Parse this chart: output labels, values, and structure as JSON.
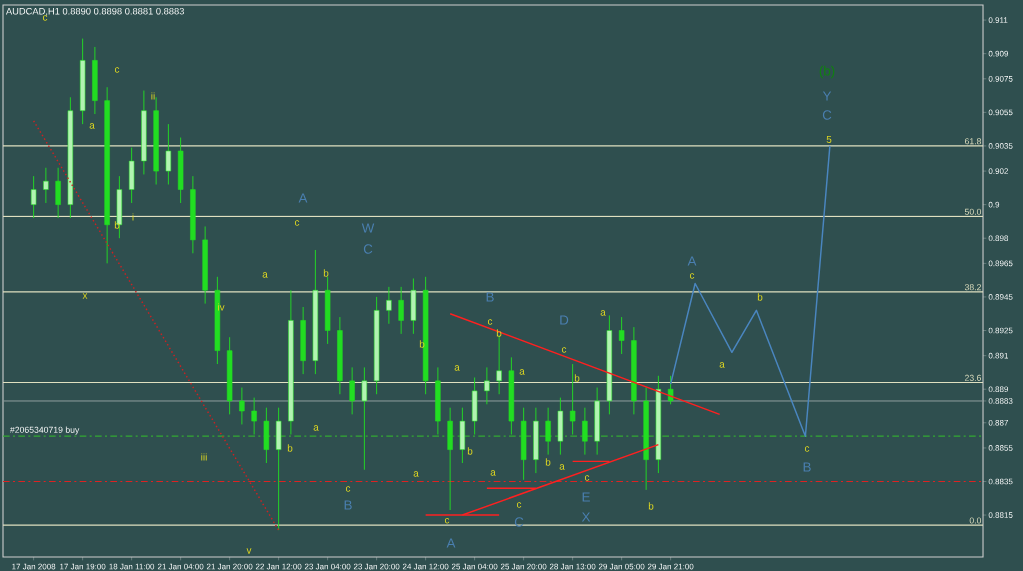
{
  "chart_data": {
    "type": "candlestick",
    "title": "AUDCAD,H1 0.8890 0.8898 0.8881 0.8883",
    "categories": [
      "17 Jan 2008",
      null,
      null,
      null,
      "17 Jan 19:00",
      null,
      null,
      null,
      "18 Jan 11:00",
      null,
      null,
      null,
      "21 Jan 04:00",
      null,
      null,
      null,
      "21 Jan 20:00",
      null,
      null,
      null,
      "22 Jan 12:00",
      null,
      null,
      null,
      "23 Jan 04:00",
      null,
      null,
      null,
      "23 Jan 20:00",
      null,
      null,
      null,
      "24 Jan 12:00",
      null,
      null,
      null,
      "25 Jan 04:00",
      null,
      null,
      null,
      "25 Jan 20:00",
      null,
      null,
      null,
      "28 Jan 13:00",
      null,
      null,
      null,
      "29 Jan 05:00",
      null,
      null,
      null,
      "29 Jan 21:00",
      null,
      null,
      null,
      null,
      null,
      null,
      null,
      null,
      null,
      null,
      null,
      null,
      null,
      null,
      null,
      null,
      null,
      null,
      null,
      null,
      null,
      null,
      null,
      null,
      null
    ],
    "ylim": [
      0.879,
      0.9119
    ],
    "yticks": [
      0.911,
      0.909,
      0.9075,
      0.9055,
      0.9035,
      0.902,
      0.9,
      0.898,
      0.8965,
      0.8945,
      0.8925,
      0.891,
      0.889,
      0.8883,
      0.887,
      0.8855,
      0.8835,
      0.8815
    ],
    "series": [
      {
        "color": "#22dd22",
        "ohlc": [
          [
            0.9,
            0.9017,
            0.8992,
            0.9009
          ],
          [
            0.9009,
            0.9022,
            0.9001,
            0.9014
          ],
          [
            0.9014,
            0.9022,
            0.8992,
            0.9
          ],
          [
            0.9,
            0.9064,
            0.8992,
            0.9056
          ],
          [
            0.9056,
            0.9099,
            0.9048,
            0.9086
          ],
          [
            0.9086,
            0.9094,
            0.9054,
            0.9062
          ],
          [
            0.9062,
            0.907,
            0.8965,
            0.8988
          ],
          [
            0.8988,
            0.9017,
            0.898,
            0.9009
          ],
          [
            0.9009,
            0.9034,
            0.9001,
            0.9026
          ],
          [
            0.9026,
            0.9068,
            0.9018,
            0.9056
          ],
          [
            0.9056,
            0.9064,
            0.9012,
            0.902
          ],
          [
            0.902,
            0.9048,
            0.9012,
            0.9032
          ],
          [
            0.9032,
            0.904,
            0.9001,
            0.9009
          ],
          [
            0.9009,
            0.9017,
            0.8971,
            0.8979
          ],
          [
            0.8979,
            0.8987,
            0.8941,
            0.8949
          ],
          [
            0.8949,
            0.8957,
            0.8905,
            0.8913
          ],
          [
            0.8913,
            0.8921,
            0.8875,
            0.8883
          ],
          [
            0.8883,
            0.8891,
            0.8869,
            0.8877
          ],
          [
            0.8877,
            0.8885,
            0.8863,
            0.8871
          ],
          [
            0.8871,
            0.8879,
            0.8846,
            0.8854
          ],
          [
            0.8854,
            0.8879,
            0.8806,
            0.8871
          ],
          [
            0.8871,
            0.8949,
            0.8863,
            0.8931
          ],
          [
            0.8931,
            0.8939,
            0.8899,
            0.8907
          ],
          [
            0.8907,
            0.8973,
            0.8899,
            0.8949
          ],
          [
            0.8949,
            0.8957,
            0.8917,
            0.8925
          ],
          [
            0.8925,
            0.8933,
            0.8887,
            0.8895
          ],
          [
            0.8895,
            0.8903,
            0.8875,
            0.8883
          ],
          [
            0.8883,
            0.8903,
            0.8842,
            0.8895
          ],
          [
            0.8895,
            0.8945,
            0.8887,
            0.8937
          ],
          [
            0.8937,
            0.8951,
            0.8929,
            0.8943
          ],
          [
            0.8943,
            0.8951,
            0.8923,
            0.8931
          ],
          [
            0.8931,
            0.8956,
            0.8923,
            0.8949
          ],
          [
            0.8949,
            0.8957,
            0.8887,
            0.8895
          ],
          [
            0.8895,
            0.8903,
            0.8863,
            0.8871
          ],
          [
            0.8871,
            0.8879,
            0.8818,
            0.8854
          ],
          [
            0.8854,
            0.8879,
            0.8846,
            0.8871
          ],
          [
            0.8871,
            0.8897,
            0.8863,
            0.8889
          ],
          [
            0.8889,
            0.8903,
            0.8881,
            0.8895
          ],
          [
            0.8895,
            0.8922,
            0.8887,
            0.8901
          ],
          [
            0.8901,
            0.8909,
            0.8863,
            0.8871
          ],
          [
            0.8871,
            0.8879,
            0.8836,
            0.8848
          ],
          [
            0.8848,
            0.8879,
            0.884,
            0.8871
          ],
          [
            0.8871,
            0.8879,
            0.8851,
            0.8859
          ],
          [
            0.8859,
            0.8885,
            0.8851,
            0.8877
          ],
          [
            0.8877,
            0.8905,
            0.8863,
            0.8871
          ],
          [
            0.8871,
            0.8879,
            0.8851,
            0.8859
          ],
          [
            0.8859,
            0.8891,
            0.8851,
            0.8883
          ],
          [
            0.8883,
            0.8934,
            0.8875,
            0.8925
          ],
          [
            0.8925,
            0.8933,
            0.8911,
            0.8919
          ],
          [
            0.8919,
            0.8927,
            0.8875,
            0.8883
          ],
          [
            0.8883,
            0.8891,
            0.883,
            0.8848
          ],
          [
            0.8848,
            0.8898,
            0.884,
            0.889
          ],
          [
            0.889,
            0.8898,
            0.8881,
            0.8883
          ],
          null,
          null,
          null,
          null,
          null,
          null,
          null,
          null,
          null,
          null,
          null,
          null,
          null,
          null,
          null,
          null,
          null,
          null,
          null,
          null,
          null,
          null,
          null,
          null,
          null
        ]
      },
      {
        "type": "line",
        "color": "#4a86c0",
        "values": [
          null,
          null,
          null,
          null,
          null,
          null,
          null,
          null,
          null,
          null,
          null,
          null,
          null,
          null,
          null,
          null,
          null,
          null,
          null,
          null,
          null,
          null,
          null,
          null,
          null,
          null,
          null,
          null,
          null,
          null,
          null,
          null,
          null,
          null,
          null,
          null,
          null,
          null,
          null,
          null,
          null,
          null,
          null,
          null,
          null,
          null,
          null,
          null,
          null,
          null,
          null,
          null,
          0.8893,
          null,
          0.8953,
          null,
          null,
          0.8912,
          null,
          0.8937,
          null,
          null,
          null,
          0.8862,
          null,
          0.9035,
          null,
          null,
          null,
          null,
          null,
          null,
          null,
          null,
          null,
          null,
          null,
          null
        ]
      },
      {
        "type": "line",
        "color": "#cc2222",
        "line_style": "dotted",
        "values": [
          0.905,
          null,
          null,
          null,
          null,
          null,
          null,
          null,
          null,
          null,
          null,
          null,
          null,
          null,
          null,
          null,
          null,
          null,
          null,
          null,
          0.8806,
          null,
          null,
          null,
          null,
          null,
          null,
          null,
          null,
          null,
          null,
          null,
          null,
          null,
          null,
          null,
          null,
          null,
          null,
          null,
          null,
          null,
          null,
          null,
          null,
          null,
          null,
          null,
          null,
          null,
          null,
          null,
          null,
          null,
          null,
          null,
          null,
          null,
          null,
          null,
          null,
          null,
          null,
          null,
          null,
          null,
          null,
          null,
          null,
          null,
          null,
          null,
          null,
          null,
          null,
          null,
          null,
          null
        ]
      },
      {
        "type": "line",
        "color": "#ff2020",
        "values": [
          null,
          null,
          null,
          null,
          null,
          null,
          null,
          null,
          null,
          null,
          null,
          null,
          null,
          null,
          null,
          null,
          null,
          null,
          null,
          null,
          null,
          null,
          null,
          null,
          null,
          null,
          null,
          null,
          null,
          null,
          null,
          null,
          null,
          null,
          0.8935,
          null,
          null,
          null,
          null,
          null,
          null,
          null,
          null,
          null,
          null,
          null,
          null,
          null,
          null,
          null,
          null,
          null,
          null,
          null,
          null,
          null,
          0.8875,
          null,
          null,
          null,
          null,
          null,
          null,
          null,
          null,
          null,
          null,
          null,
          null,
          null,
          null,
          null,
          null,
          null,
          null,
          null,
          null,
          null
        ]
      },
      {
        "type": "line",
        "color": "#ff2020",
        "values": [
          null,
          null,
          null,
          null,
          null,
          null,
          null,
          null,
          null,
          null,
          null,
          null,
          null,
          null,
          null,
          null,
          null,
          null,
          null,
          null,
          null,
          null,
          null,
          null,
          null,
          null,
          null,
          null,
          null,
          null,
          null,
          null,
          null,
          null,
          null,
          0.8815,
          null,
          null,
          null,
          null,
          null,
          null,
          null,
          null,
          null,
          null,
          null,
          null,
          null,
          null,
          null,
          0.8857,
          null,
          null,
          null,
          null,
          null,
          null,
          null,
          null,
          null,
          null,
          null,
          null,
          null,
          null,
          null,
          null,
          null,
          null,
          null,
          null,
          null,
          null,
          null,
          null,
          null,
          null
        ]
      },
      {
        "type": "line",
        "color": "#ff2020",
        "values": [
          null,
          null,
          null,
          null,
          null,
          null,
          null,
          null,
          null,
          null,
          null,
          null,
          null,
          null,
          null,
          null,
          null,
          null,
          null,
          null,
          null,
          null,
          null,
          null,
          null,
          null,
          null,
          null,
          null,
          null,
          null,
          null,
          0.8815,
          null,
          null,
          null,
          null,
          null,
          0.8815,
          null,
          null,
          null,
          null,
          null,
          null,
          null,
          null,
          null,
          null,
          null,
          null,
          null,
          null,
          null,
          null,
          null,
          null,
          null,
          null,
          null,
          null,
          null,
          null,
          null,
          null,
          null,
          null,
          null,
          null,
          null,
          null,
          null,
          null,
          null,
          null,
          null,
          null,
          null
        ]
      },
      {
        "type": "line",
        "color": "#ff2020",
        "values": [
          null,
          null,
          null,
          null,
          null,
          null,
          null,
          null,
          null,
          null,
          null,
          null,
          null,
          null,
          null,
          null,
          null,
          null,
          null,
          null,
          null,
          null,
          null,
          null,
          null,
          null,
          null,
          null,
          null,
          null,
          null,
          null,
          null,
          null,
          null,
          null,
          null,
          0.8831,
          null,
          null,
          null,
          0.8831,
          null,
          null,
          null,
          null,
          null,
          null,
          null,
          null,
          null,
          null,
          null,
          null,
          null,
          null,
          null,
          null,
          null,
          null,
          null,
          null,
          null,
          null,
          null,
          null,
          null,
          null,
          null,
          null,
          null,
          null,
          null,
          null,
          null,
          null,
          null,
          null
        ]
      },
      {
        "type": "line",
        "color": "#ff2020",
        "values": [
          null,
          null,
          null,
          null,
          null,
          null,
          null,
          null,
          null,
          null,
          null,
          null,
          null,
          null,
          null,
          null,
          null,
          null,
          null,
          null,
          null,
          null,
          null,
          null,
          null,
          null,
          null,
          null,
          null,
          null,
          null,
          null,
          null,
          null,
          null,
          null,
          null,
          null,
          null,
          null,
          null,
          null,
          null,
          null,
          0.8847,
          null,
          null,
          0.8847,
          null,
          null,
          null,
          null,
          null,
          null,
          null,
          null,
          null,
          null,
          null,
          null,
          null,
          null,
          null,
          null,
          null,
          null,
          null,
          null,
          null,
          null,
          null,
          null,
          null,
          null,
          null,
          null,
          null,
          null
        ]
      }
    ],
    "ref_lines": [
      {
        "axis": "y",
        "value": 0.9035,
        "color": "#e0e0c0"
      },
      {
        "axis": "y",
        "value": 0.8993,
        "color": "#e0e0c0"
      },
      {
        "axis": "y",
        "value": 0.8948,
        "color": "#e0e0c0"
      },
      {
        "axis": "y",
        "value": 0.8894,
        "color": "#e0e0c0"
      },
      {
        "axis": "y",
        "value": 0.8809,
        "color": "#e0e0c0"
      },
      {
        "axis": "y",
        "value": 0.8883,
        "color": "#8a9a9a"
      },
      {
        "axis": "y",
        "value": 0.8862,
        "label": "#2065340719 buy",
        "color": "#33aa33",
        "line_style": "dashed"
      },
      {
        "axis": "y",
        "value": 0.8835,
        "color": "#dd2222",
        "line_style": "dashed"
      }
    ],
    "annotations": [
      {
        "text": "61.8",
        "y": 0.9035
      },
      {
        "text": "50.0",
        "y": 0.8993
      },
      {
        "text": "38.2",
        "y": 0.8948
      },
      {
        "text": "23.6",
        "y": 0.8894
      },
      {
        "text": "0.0",
        "y": 0.8809
      },
      "c",
      "c",
      "ii",
      "a",
      "b",
      "x",
      "i",
      "A",
      "c",
      "a",
      "b",
      "iv",
      "W",
      "C",
      "b",
      "a",
      "b",
      "iii",
      "c",
      "B",
      "v",
      "a",
      {
        "text": "c",
        "y": 0.8815
      },
      "A",
      "B",
      "c",
      "b",
      "a",
      "b",
      "a",
      "c",
      "C",
      "a",
      "D",
      "c",
      "a",
      "b",
      "b",
      "a",
      "c",
      "E",
      "X",
      "b",
      "A",
      "c",
      "a",
      "b",
      "c",
      "B",
      "(b)",
      "Y",
      "C",
      {
        "text": "5",
        "y": 0.9035
      }
    ]
  }
}
